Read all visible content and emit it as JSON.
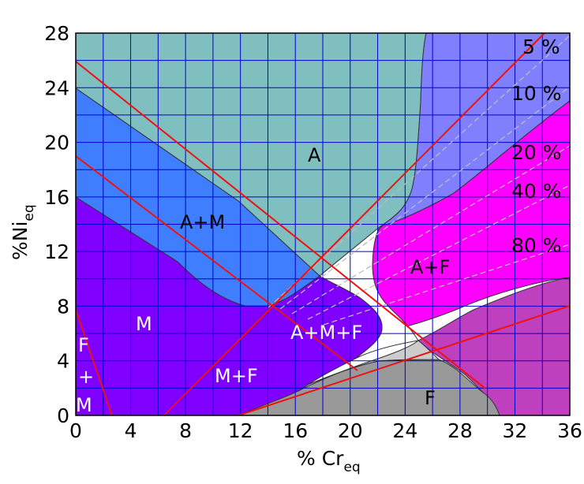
{
  "chart_data": {
    "type": "phase-diagram",
    "xlabel": {
      "main": "% Cr",
      "sub": "eq"
    },
    "ylabel": {
      "main": "%Ni",
      "sub": "eq"
    },
    "xlim": [
      0,
      36
    ],
    "ylim": [
      0,
      28
    ],
    "x_ticks": [
      "0",
      "4",
      "8",
      "12",
      "16",
      "20",
      "24",
      "28",
      "32",
      "36"
    ],
    "y_ticks": [
      "0",
      "4",
      "8",
      "12",
      "16",
      "20",
      "24",
      "28"
    ],
    "grid": true,
    "regions": [
      {
        "label": "A",
        "color": "#80bfbf"
      },
      {
        "label": "A+M",
        "color": "#3f7fff"
      },
      {
        "label": "M",
        "color": "#7f00ff"
      },
      {
        "label": "A+M+F",
        "color": "#7f00ff"
      },
      {
        "label": "M+F",
        "color": "#7f00ff"
      },
      {
        "label": "F",
        "color": "#999999"
      },
      {
        "label": "A+F",
        "color": "#ff00ff"
      },
      {
        "label": "F + M",
        "color": "#7f00ff"
      }
    ],
    "ferrite_lines": [
      "5 %",
      "10 %",
      "20 %",
      "40 %",
      "80 %"
    ],
    "colors": {
      "grid": "#0000cc",
      "boundary": "#333333",
      "red_line": "#ee1111",
      "dashed": "#bbbbbb",
      "gap": "#ffffff",
      "blue_top": "#8080ff",
      "purple_right": "#bf40bf"
    }
  }
}
